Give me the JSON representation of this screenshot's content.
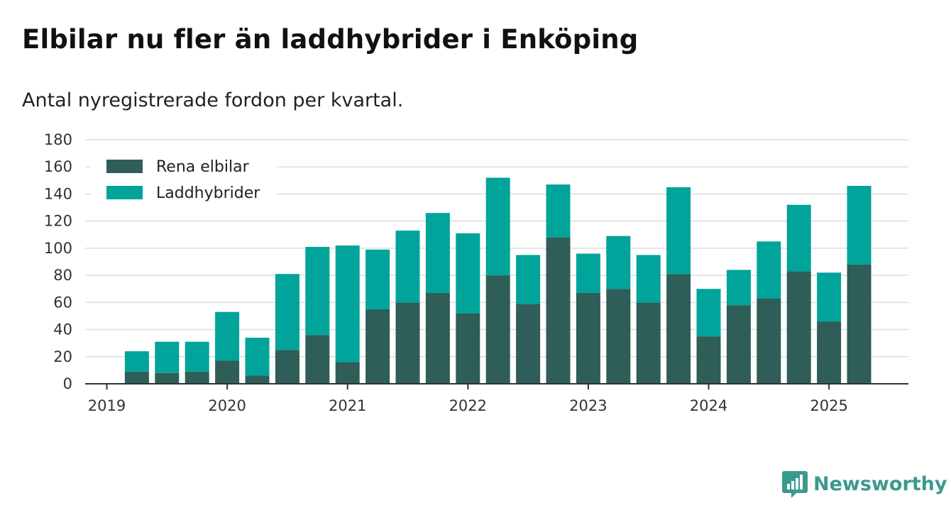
{
  "title": "Elbilar nu fler än laddhybrider i Enköping",
  "subtitle": "Antal nyregistrerade fordon per kvartal.",
  "brand": {
    "name": "Newsworthy",
    "icon": "newsworthy-logo-icon",
    "color": "#3a9a8d"
  },
  "chart_data": {
    "type": "bar",
    "stacked": true,
    "x": [
      "2019Q1",
      "2019Q2",
      "2019Q3",
      "2019Q4",
      "2020Q1",
      "2020Q2",
      "2020Q3",
      "2020Q4",
      "2021Q1",
      "2021Q2",
      "2021Q3",
      "2021Q4",
      "2022Q1",
      "2022Q2",
      "2022Q3",
      "2022Q4",
      "2023Q1",
      "2023Q2",
      "2023Q3",
      "2023Q4",
      "2024Q1",
      "2024Q2",
      "2024Q3",
      "2024Q4",
      "2025Q1",
      "2025Q2"
    ],
    "series": [
      {
        "name": "Rena elbilar",
        "color": "#2f5d57",
        "values": [
          0,
          9,
          8,
          9,
          17,
          6,
          25,
          36,
          16,
          55,
          60,
          67,
          52,
          80,
          59,
          108,
          67,
          70,
          60,
          81,
          35,
          58,
          63,
          83,
          46,
          88
        ]
      },
      {
        "name": "Laddhybrider",
        "color": "#00a49a",
        "values": [
          0,
          15,
          23,
          22,
          36,
          28,
          56,
          65,
          86,
          44,
          53,
          59,
          59,
          72,
          36,
          39,
          29,
          39,
          35,
          64,
          35,
          26,
          42,
          49,
          36,
          58
        ]
      }
    ],
    "xtick_labels": [
      "2019",
      "2020",
      "2021",
      "2022",
      "2023",
      "2024",
      "2025"
    ],
    "xtick_positions": [
      "2019Q1",
      "2020Q1",
      "2021Q1",
      "2022Q1",
      "2023Q1",
      "2024Q1",
      "2025Q1"
    ],
    "yticks": [
      0,
      20,
      40,
      60,
      80,
      100,
      120,
      140,
      160,
      180
    ],
    "ylim": [
      0,
      180
    ],
    "grid": true,
    "legend": "top-left",
    "xlabel": "",
    "ylabel": ""
  }
}
